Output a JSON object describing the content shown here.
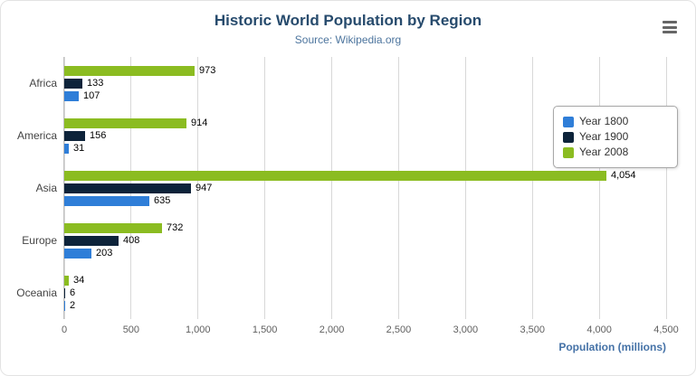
{
  "header": {
    "title": "Historic World Population by Region",
    "subtitle": "Source: Wikipedia.org"
  },
  "chart_data": {
    "type": "bar",
    "categories": [
      "Africa",
      "America",
      "Asia",
      "Europe",
      "Oceania"
    ],
    "series": [
      {
        "name": "Year 1800",
        "color": "#2f7ed8",
        "values": [
          107,
          31,
          635,
          203,
          2
        ]
      },
      {
        "name": "Year 1900",
        "color": "#0d233a",
        "values": [
          133,
          156,
          947,
          408,
          6
        ]
      },
      {
        "name": "Year 2008",
        "color": "#8bbc21",
        "values": [
          973,
          914,
          4054,
          732,
          34
        ]
      }
    ],
    "series_display_order": [
      "Year 2008",
      "Year 1900",
      "Year 1800"
    ],
    "xlabel": "Population (millions)",
    "xlim": [
      0,
      4500
    ],
    "tick_interval": 500,
    "grid": true,
    "legend_position": "right"
  },
  "colors": {
    "title": "#274b6d",
    "subtitle": "#4d759e",
    "axis_title": "#4572a7",
    "gridline": "#d8d8d8",
    "tick_label": "#606060",
    "category_label": "#444444",
    "value_label": "#000000",
    "legend_border": "#a8a8a8"
  }
}
